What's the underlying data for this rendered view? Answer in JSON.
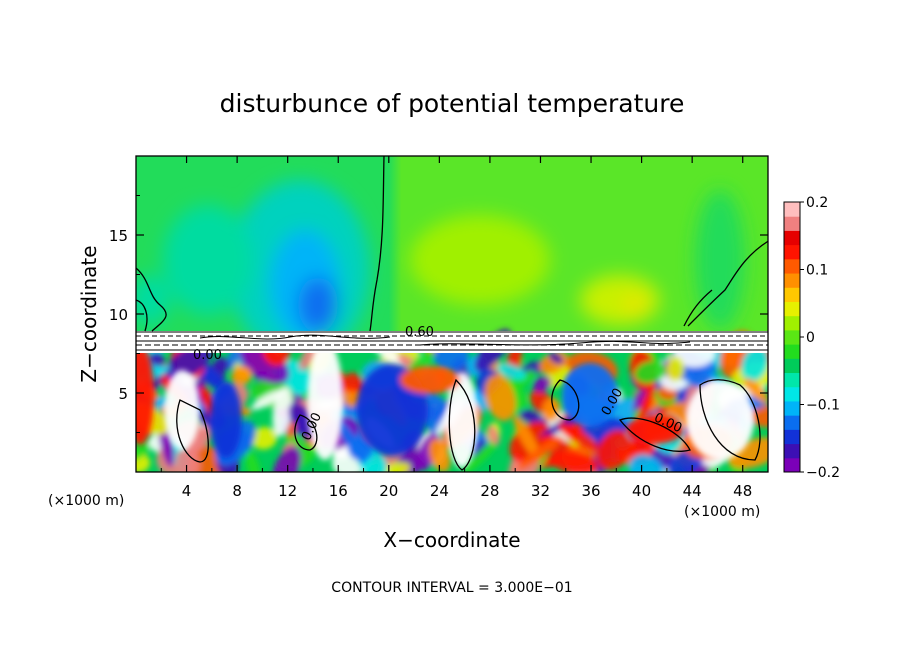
{
  "chart_data": {
    "type": "heatmap",
    "title": "disturbunce of potential temperature",
    "xlabel": "X−coordinate",
    "ylabel": "Z−coordinate",
    "x_unit_left": "(×1000 m)",
    "x_unit_right": "(×1000 m)",
    "xlim": [
      0,
      50
    ],
    "ylim": [
      0,
      20
    ],
    "x_ticks": [
      4,
      8,
      12,
      16,
      20,
      24,
      28,
      32,
      36,
      40,
      44,
      48
    ],
    "y_ticks": [
      5,
      10,
      15
    ],
    "colorbar": {
      "range": [
        -0.2,
        0.2
      ],
      "ticks": [
        0.2,
        0.1,
        0,
        -0.1,
        -0.2
      ],
      "tick_labels": [
        "0.2",
        "0.1",
        "0",
        "−0.1",
        "−0.2"
      ],
      "colors": [
        "#7b00b8",
        "#3c0fb4",
        "#1232d8",
        "#0a6ef0",
        "#00b4f8",
        "#00e6e6",
        "#00e6aa",
        "#00cc5a",
        "#22dc1e",
        "#5ae614",
        "#a0f000",
        "#e6f000",
        "#ffc800",
        "#ff9000",
        "#ff5a00",
        "#ff1400",
        "#e60000",
        "#f08080",
        "#ffbebe"
      ]
    },
    "contour_labels": [
      "0.60",
      "0.00",
      "0.00",
      "0.00",
      "0.00"
    ],
    "footnote": "CONTOUR INTERVAL = 3.000E−01"
  }
}
